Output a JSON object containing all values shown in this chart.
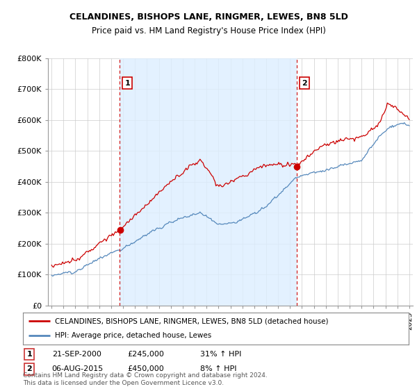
{
  "title": "CELANDINES, BISHOPS LANE, RINGMER, LEWES, BN8 5LD",
  "subtitle": "Price paid vs. HM Land Registry's House Price Index (HPI)",
  "ylim": [
    0,
    800000
  ],
  "yticks": [
    0,
    100000,
    200000,
    300000,
    400000,
    500000,
    600000,
    700000,
    800000
  ],
  "ytick_labels": [
    "£0",
    "£100K",
    "£200K",
    "£300K",
    "£400K",
    "£500K",
    "£600K",
    "£700K",
    "£800K"
  ],
  "xlim_left": 1994.7,
  "xlim_right": 2025.3,
  "sale1_date_num": 2000.73,
  "sale1_price": 245000,
  "sale1_label": "1",
  "sale1_date_str": "21-SEP-2000",
  "sale1_hpi_pct": "31% ↑ HPI",
  "sale2_date_num": 2015.59,
  "sale2_price": 450000,
  "sale2_label": "2",
  "sale2_date_str": "06-AUG-2015",
  "sale2_hpi_pct": "8% ↑ HPI",
  "red_color": "#cc0000",
  "blue_color": "#5588bb",
  "shade_color": "#ddeeff",
  "legend_label_red": "CELANDINES, BISHOPS LANE, RINGMER, LEWES, BN8 5LD (detached house)",
  "legend_label_blue": "HPI: Average price, detached house, Lewes",
  "footer": "Contains HM Land Registry data © Crown copyright and database right 2024.\nThis data is licensed under the Open Government Licence v3.0.",
  "background_color": "#ffffff",
  "plot_bg_color": "#ffffff"
}
